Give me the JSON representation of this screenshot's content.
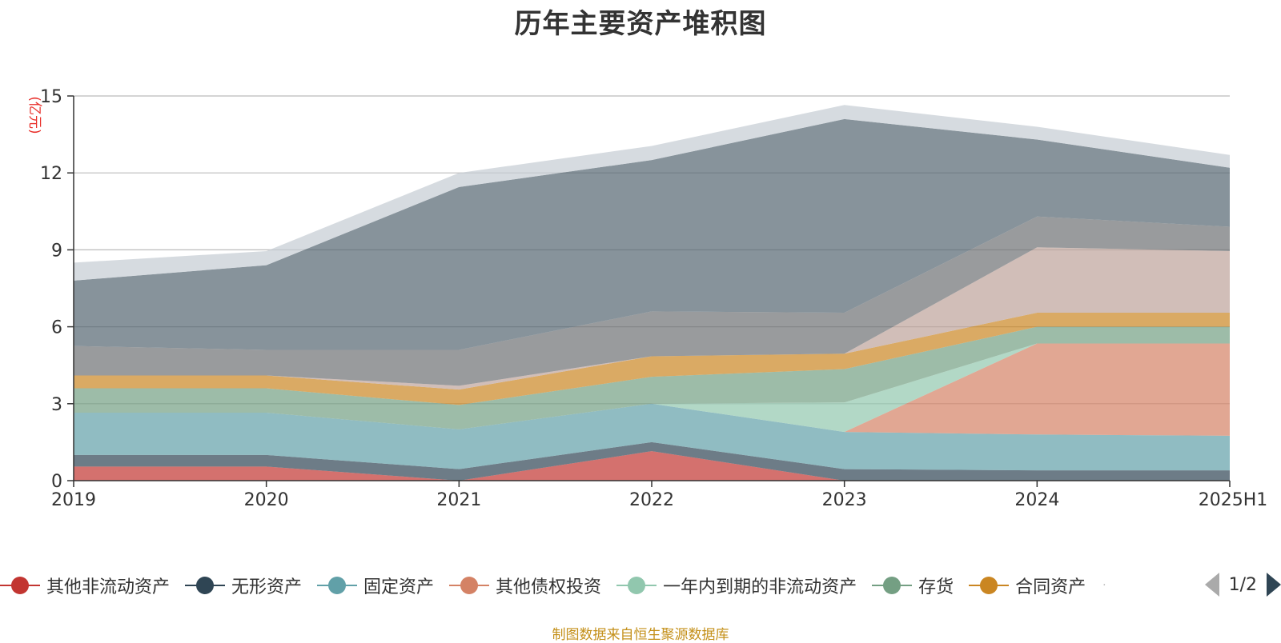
{
  "chart_data": {
    "type": "area",
    "stacked": true,
    "title": "历年主要资产堆积图",
    "unit_label": "(亿元)",
    "categories": [
      "2019",
      "2020",
      "2021",
      "2022",
      "2023",
      "2024",
      "2025H1"
    ],
    "ylim": [
      0,
      15
    ],
    "yticks": [
      0,
      3,
      6,
      9,
      12,
      15
    ],
    "grid": true,
    "series": [
      {
        "name": "其他非流动资产",
        "color": "#c23531",
        "values": [
          0.55,
          0.55,
          0.0,
          1.15,
          0.0,
          0.0,
          0.0
        ]
      },
      {
        "name": "无形资产",
        "color": "#2f4554",
        "values": [
          0.45,
          0.45,
          0.45,
          0.35,
          0.45,
          0.4,
          0.4
        ]
      },
      {
        "name": "固定资产",
        "color": "#61a0a8",
        "values": [
          1.65,
          1.65,
          1.55,
          1.5,
          1.45,
          1.4,
          1.35
        ]
      },
      {
        "name": "其他债权投资",
        "color": "#d48265",
        "values": [
          0.0,
          0.0,
          0.0,
          0.0,
          0.0,
          3.55,
          3.6
        ]
      },
      {
        "name": "一年内到期的非流动资产",
        "color": "#91c7ae",
        "values": [
          0.0,
          0.0,
          0.0,
          0.0,
          1.15,
          0.0,
          0.0
        ]
      },
      {
        "name": "存货",
        "color": "#749f83",
        "values": [
          0.95,
          0.95,
          0.95,
          1.05,
          1.3,
          0.65,
          0.65
        ]
      },
      {
        "name": "合同资产",
        "color": "#ca8622",
        "values": [
          0.5,
          0.5,
          0.6,
          0.8,
          0.6,
          0.55,
          0.55
        ]
      },
      {
        "name": "",
        "color": "#bda29a",
        "values": [
          0.0,
          0.0,
          0.15,
          0.0,
          0.0,
          2.55,
          2.4
        ]
      },
      {
        "name": "",
        "color": "#6e7074",
        "values": [
          1.15,
          1.0,
          1.4,
          1.75,
          1.6,
          1.2,
          0.95
        ]
      },
      {
        "name": "",
        "color": "#546570",
        "values": [
          2.55,
          3.3,
          6.35,
          5.9,
          7.55,
          3.0,
          2.3
        ]
      },
      {
        "name": "",
        "color": "#c4ccd3",
        "values": [
          0.7,
          0.55,
          0.55,
          0.55,
          0.55,
          0.5,
          0.5
        ]
      }
    ],
    "legend_position": "bottom",
    "legend_visible_count": 7
  },
  "legend": {
    "page_label": "1/2"
  },
  "footer": {
    "source": "制图数据来自恒生聚源数据库"
  }
}
